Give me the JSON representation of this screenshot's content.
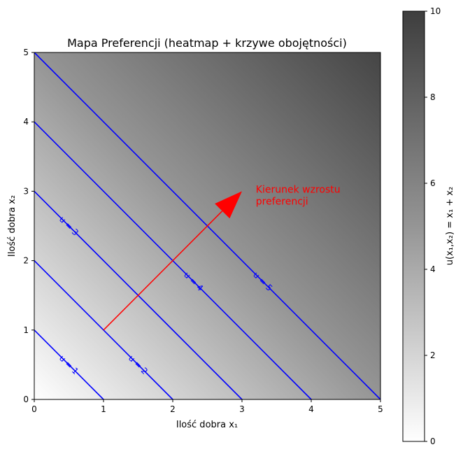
{
  "chart_data": {
    "type": "heatmap",
    "title": "Mapa Preferencji (heatmap + krzywe obojętności)",
    "xlabel": "Ilość dobra x₁",
    "ylabel": "Ilość dobra x₂",
    "xlim": [
      0,
      5
    ],
    "ylim": [
      0,
      5
    ],
    "x_ticks": [
      "0",
      "1",
      "2",
      "3",
      "4",
      "5"
    ],
    "y_ticks": [
      "0",
      "1",
      "2",
      "3",
      "4",
      "5"
    ],
    "heatmap": {
      "function": "x1 + x2",
      "colormap": "Greys",
      "vmin": 0,
      "vmax": 10,
      "colorbar_label": "u(x₁,x₂) = x₁ + x₂",
      "colorbar_ticks": [
        "0",
        "2",
        "4",
        "6",
        "8",
        "10"
      ]
    },
    "contours": {
      "color": "#0000ff",
      "levels": [
        1,
        2,
        3,
        4,
        5
      ],
      "labels": [
        {
          "level": 1,
          "text": "u = 1",
          "at": [
            0.5,
            0.5
          ]
        },
        {
          "level": 2,
          "text": "u = 2",
          "at": [
            1.5,
            0.5
          ]
        },
        {
          "level": 3,
          "text": "u = 3",
          "at": [
            0.5,
            2.5
          ]
        },
        {
          "level": 4,
          "text": "u = 4",
          "at": [
            2.3,
            1.7
          ]
        },
        {
          "level": 5,
          "text": "u = 5",
          "at": [
            3.3,
            1.7
          ]
        }
      ]
    },
    "annotation": {
      "text_lines": [
        "Kierunek wzrostu",
        "preferencji"
      ],
      "color": "#ff0000",
      "arrow_from": [
        1,
        1
      ],
      "arrow_to": [
        3,
        3
      ],
      "text_at": [
        3.2,
        3.0
      ]
    },
    "grid": false
  }
}
